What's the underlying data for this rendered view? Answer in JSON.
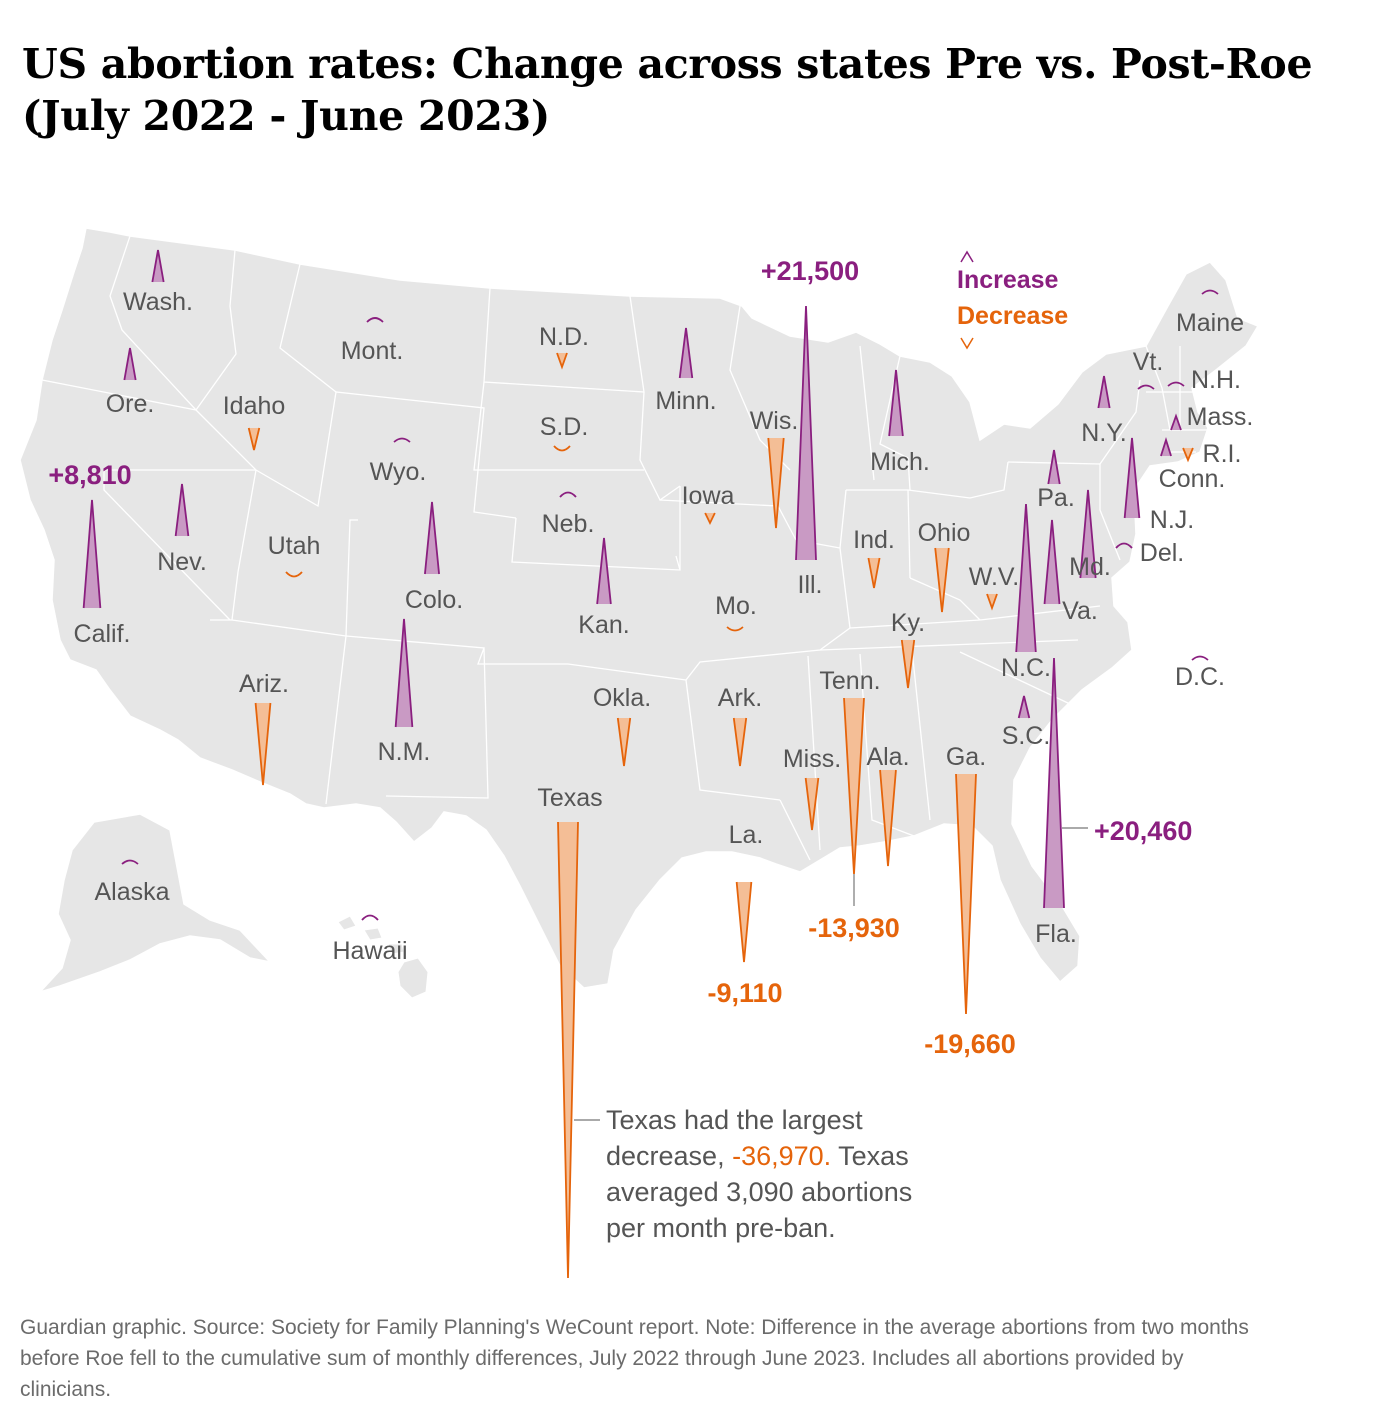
{
  "title": "US abortion rates: Change across states Pre vs. Post-Roe (July 2022 - June 2023)",
  "legend": {
    "increase": "Increase",
    "decrease": "Decrease"
  },
  "colors": {
    "increase": "#8a1f7f",
    "increase_fill": "#c99ac4",
    "decrease": "#e5640b",
    "decrease_fill": "#f4be96",
    "land": "#e6e6e6",
    "border": "#ffffff",
    "label": "#555555"
  },
  "states": [
    {
      "id": "wa",
      "label": "Wash.",
      "change": "increase"
    },
    {
      "id": "or",
      "label": "Ore.",
      "change": "increase"
    },
    {
      "id": "ca",
      "label": "Calif.",
      "change": "increase",
      "value": "+8,810"
    },
    {
      "id": "nv",
      "label": "Nev.",
      "change": "increase"
    },
    {
      "id": "id",
      "label": "Idaho",
      "change": "decrease"
    },
    {
      "id": "mt",
      "label": "Mont.",
      "change": "increase"
    },
    {
      "id": "wy",
      "label": "Wyo.",
      "change": "increase"
    },
    {
      "id": "ut",
      "label": "Utah",
      "change": "decrease"
    },
    {
      "id": "co",
      "label": "Colo.",
      "change": "increase"
    },
    {
      "id": "az",
      "label": "Ariz.",
      "change": "decrease"
    },
    {
      "id": "nm",
      "label": "N.M.",
      "change": "increase"
    },
    {
      "id": "nd",
      "label": "N.D.",
      "change": "decrease"
    },
    {
      "id": "sd",
      "label": "S.D.",
      "change": "decrease"
    },
    {
      "id": "ne",
      "label": "Neb.",
      "change": "increase"
    },
    {
      "id": "ks",
      "label": "Kan.",
      "change": "increase"
    },
    {
      "id": "ok",
      "label": "Okla.",
      "change": "decrease"
    },
    {
      "id": "tx",
      "label": "Texas",
      "change": "decrease"
    },
    {
      "id": "mn",
      "label": "Minn.",
      "change": "increase"
    },
    {
      "id": "ia",
      "label": "Iowa",
      "change": "decrease"
    },
    {
      "id": "mo",
      "label": "Mo.",
      "change": "decrease"
    },
    {
      "id": "ar",
      "label": "Ark.",
      "change": "decrease"
    },
    {
      "id": "la",
      "label": "La.",
      "change": "decrease",
      "value": "-9,110"
    },
    {
      "id": "wi",
      "label": "Wis.",
      "change": "decrease"
    },
    {
      "id": "il",
      "label": "Ill.",
      "change": "increase",
      "value": "+21,500"
    },
    {
      "id": "mi",
      "label": "Mich.",
      "change": "increase"
    },
    {
      "id": "in",
      "label": "Ind.",
      "change": "decrease"
    },
    {
      "id": "oh",
      "label": "Ohio",
      "change": "decrease"
    },
    {
      "id": "ky",
      "label": "Ky.",
      "change": "decrease"
    },
    {
      "id": "tn",
      "label": "Tenn.",
      "change": "decrease",
      "value": "-13,930"
    },
    {
      "id": "ms",
      "label": "Miss.",
      "change": "decrease"
    },
    {
      "id": "al",
      "label": "Ala.",
      "change": "decrease"
    },
    {
      "id": "ga",
      "label": "Ga.",
      "change": "decrease",
      "value": "-19,660"
    },
    {
      "id": "fl",
      "label": "Fla.",
      "change": "increase",
      "value": "+20,460"
    },
    {
      "id": "sc",
      "label": "S.C.",
      "change": "increase"
    },
    {
      "id": "nc",
      "label": "N.C.",
      "change": "increase"
    },
    {
      "id": "va",
      "label": "Va.",
      "change": "increase"
    },
    {
      "id": "wv",
      "label": "W.V.",
      "change": "decrease"
    },
    {
      "id": "md",
      "label": "Md.",
      "change": "increase"
    },
    {
      "id": "de",
      "label": "Del.",
      "change": "increase"
    },
    {
      "id": "pa",
      "label": "Pa.",
      "change": "increase"
    },
    {
      "id": "ny",
      "label": "N.Y.",
      "change": "increase"
    },
    {
      "id": "nj",
      "label": "N.J.",
      "change": "increase"
    },
    {
      "id": "ct",
      "label": "Conn.",
      "change": "increase"
    },
    {
      "id": "ri",
      "label": "R.I.",
      "change": "decrease"
    },
    {
      "id": "ma",
      "label": "Mass.",
      "change": "increase"
    },
    {
      "id": "vt",
      "label": "Vt.",
      "change": "increase"
    },
    {
      "id": "nh",
      "label": "N.H.",
      "change": "increase"
    },
    {
      "id": "me",
      "label": "Maine",
      "change": "increase"
    },
    {
      "id": "dc",
      "label": "D.C.",
      "change": "increase"
    },
    {
      "id": "ak",
      "label": "Alaska",
      "change": "increase"
    },
    {
      "id": "hi",
      "label": "Hawaii",
      "change": "increase"
    }
  ],
  "annotation": {
    "line1": "Texas had the largest",
    "line2_pre": "decrease, ",
    "highlight": "-36,970.",
    "line2_post": " Texas",
    "line3": "averaged 3,090 abortions",
    "line4": "per month pre-ban."
  },
  "footer": "Guardian graphic. Source: Society for Family Planning's WeCount report. Note: Difference in the average abortions from two months before Roe fell to the cumulative sum of monthly differences, July 2022 through June 2023. Includes all abortions provided by clinicians."
}
